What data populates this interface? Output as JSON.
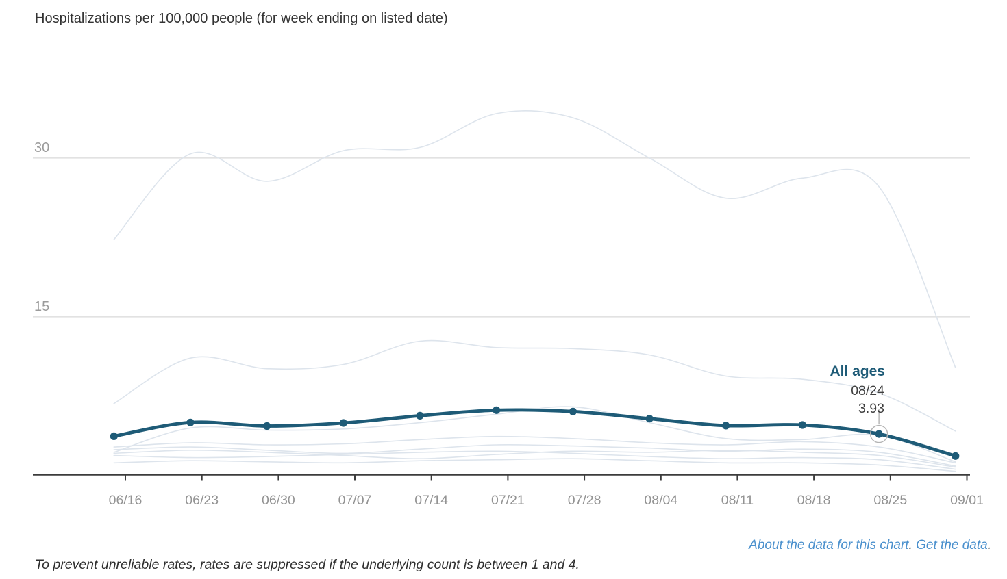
{
  "title": "Hospitalizations per 100,000 people (for week ending on listed date)",
  "annotation": {
    "series_label": "All ages",
    "date": "08/24",
    "value": "3.93"
  },
  "footer": {
    "about_link": "About the data for this chart",
    "get_link": "Get the data",
    "link_period": ".",
    "note": "To prevent unreliable rates, rates are suppressed if the underlying count is between 1 and 4."
  },
  "colors": {
    "main_line": "#1e5b77",
    "annotation_label": "#1e5b77",
    "annotation_text": "#3f3f3f",
    "background_line": "#dde4ec",
    "gridline": "#d9d9d9",
    "axis_line": "#3c3c3c",
    "tick_label": "#939393",
    "y_label": "#9b9b9b",
    "link_blue": "#4a90cd",
    "highlight_ring": "#b3b3b3",
    "connector": "#a6a6a6"
  },
  "chart_data": {
    "type": "line",
    "title": "Hospitalizations per 100,000 people (for week ending on listed date)",
    "xlabel": "",
    "ylabel": "Hospitalizations per 100,000 people",
    "ylim": [
      0,
      38
    ],
    "grid": "horizontal-only",
    "legend_position": "inline-annotation",
    "y_gridlines": [
      {
        "value": 15,
        "label": "15"
      },
      {
        "value": 30,
        "label": "30"
      }
    ],
    "x_tick_labels": [
      "06/16",
      "06/23",
      "06/30",
      "07/07",
      "07/14",
      "07/21",
      "07/28",
      "08/04",
      "08/11",
      "08/18",
      "08/25",
      "09/01"
    ],
    "series": [
      {
        "name": "All ages",
        "x_dates_estimated": [
          "06/15",
          "06/22",
          "06/29",
          "07/06",
          "07/13",
          "07/20",
          "07/27",
          "08/03",
          "08/10",
          "08/17",
          "08/24",
          "08/31"
        ],
        "values": [
          3.72,
          5.02,
          4.68,
          4.97,
          5.66,
          6.18,
          6.05,
          5.38,
          4.72,
          4.78,
          3.93,
          1.85
        ],
        "highlighted_point": {
          "index": 10,
          "date": "08/24",
          "value": 3.93
        }
      }
    ],
    "background_series": [
      {
        "name": "unlabeled-age-group-1",
        "values": [
          22.3,
          30.4,
          27.8,
          30.7,
          31.0,
          34.2,
          33.8,
          30.0,
          26.2,
          28.1,
          27.3,
          10.2
        ]
      },
      {
        "name": "unlabeled-age-group-2",
        "values": [
          6.8,
          11.1,
          10.1,
          10.5,
          12.7,
          12.1,
          12.0,
          11.4,
          9.4,
          9.1,
          7.8,
          4.2
        ]
      },
      {
        "name": "unlabeled-age-group-3",
        "values": [
          2.2,
          4.5,
          4.3,
          4.4,
          5.0,
          5.8,
          6.5,
          5.0,
          3.5,
          3.4,
          3.8,
          1.3
        ]
      },
      {
        "name": "unlabeled-age-group-4",
        "values": [
          2.7,
          3.1,
          2.9,
          3.0,
          3.4,
          3.7,
          3.5,
          3.1,
          2.9,
          3.2,
          2.7,
          1.2
        ]
      },
      {
        "name": "unlabeled-age-group-5",
        "values": [
          2.45,
          2.7,
          2.4,
          2.1,
          2.5,
          2.9,
          2.8,
          2.6,
          2.3,
          2.5,
          2.2,
          0.9
        ]
      },
      {
        "name": "unlabeled-age-group-6",
        "values": [
          2.1,
          2.4,
          2.2,
          1.9,
          1.6,
          2.0,
          2.3,
          2.2,
          2.4,
          2.2,
          1.9,
          0.8
        ]
      },
      {
        "name": "unlabeled-age-group-7",
        "values": [
          1.9,
          1.7,
          1.8,
          2.0,
          2.2,
          2.3,
          2.1,
          1.8,
          1.6,
          1.7,
          1.5,
          0.6
        ]
      },
      {
        "name": "unlabeled-age-group-8",
        "values": [
          1.2,
          1.4,
          1.3,
          1.2,
          1.4,
          1.5,
          1.6,
          1.4,
          1.2,
          1.2,
          1.0,
          0.4
        ]
      }
    ]
  }
}
